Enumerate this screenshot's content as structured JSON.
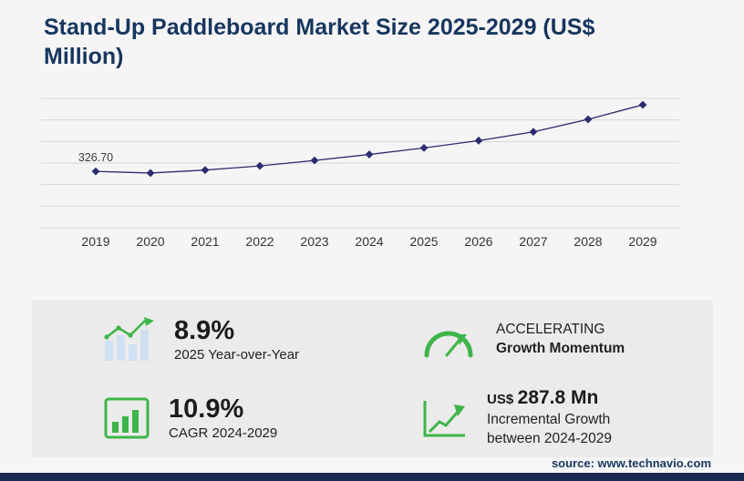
{
  "page": {
    "title": "Stand-Up Paddleboard Market Size 2025-2029 (US$ Million)",
    "source_credit": "source: www.technavio.com"
  },
  "chart_data": {
    "type": "line",
    "title": "Stand-Up Paddleboard Market Size 2025-2029 (US$ Million)",
    "units": "US$ Million",
    "categories": [
      "2019",
      "2020",
      "2021",
      "2022",
      "2023",
      "2024",
      "2025",
      "2026",
      "2027",
      "2028",
      "2029"
    ],
    "values": [
      326.7,
      317.2,
      334.5,
      358.4,
      390.1,
      424.9,
      462.7,
      505.3,
      556.0,
      628.5,
      712.7
    ],
    "first_value_label": "326.70",
    "xlabel": "",
    "ylabel": "",
    "ylim": [
      0,
      750
    ],
    "gridline_count": 7,
    "grid": "horizontal",
    "legend": "none",
    "marker": "diamond"
  },
  "stats": {
    "yoy": {
      "value": "8.9%",
      "label": "2025 Year-over-Year"
    },
    "momentum": {
      "line1": "ACCELERATING",
      "line2": "Growth Momentum"
    },
    "cagr": {
      "value": "10.9%",
      "label": "CAGR 2024-2029"
    },
    "incremental": {
      "prefix": "US$",
      "value": "287.8 Mn",
      "line1": "Incremental Growth",
      "line2": "between 2024-2029"
    }
  },
  "icons": {
    "yoy": "growth-bars-icon",
    "momentum": "speedometer-icon",
    "cagr": "framed-bar-chart-icon",
    "incremental": "rising-arrow-chart-icon"
  },
  "colors": {
    "page-bg": "#f5f5f5",
    "navy-title": "#17365f",
    "line-navy": "#2b2c72",
    "accent-green": "#3eb549",
    "icon-bar-blue": "#cfe0f2",
    "panel-gray": "#ebebeb",
    "footer-navy": "#1b2a52",
    "grid-gray": "#d9d9d9",
    "text-dark": "#1c1c1c"
  }
}
